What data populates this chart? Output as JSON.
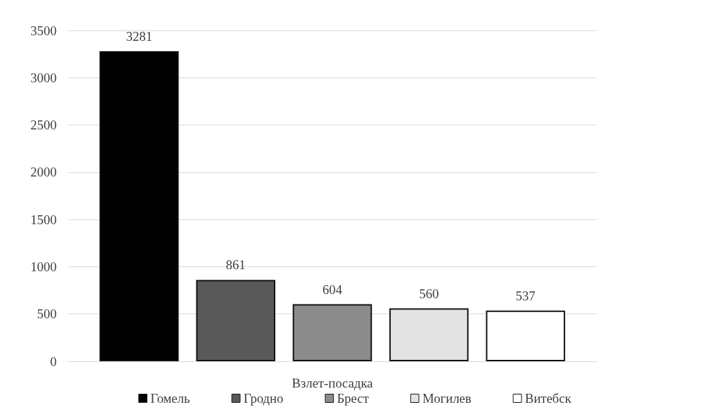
{
  "chart_data": {
    "type": "bar",
    "xlabel": "Взлет-посадка",
    "categories": [
      null
    ],
    "series": [
      {
        "name": "Гомель",
        "color": "#000000",
        "values": [
          3281
        ]
      },
      {
        "name": "Гродно",
        "color": "#595959",
        "values": [
          861
        ]
      },
      {
        "name": "Брест",
        "color": "#8c8c8c",
        "values": [
          604
        ]
      },
      {
        "name": "Могилев",
        "color": "#e3e3e3",
        "values": [
          560
        ]
      },
      {
        "name": "Витебск",
        "color": "#ffffff",
        "values": [
          537
        ]
      }
    ],
    "ylim": [
      0,
      3500
    ],
    "yticks": [
      0,
      500,
      1000,
      1500,
      2000,
      2500,
      3000,
      3500
    ],
    "grid": "y",
    "legend": "bottom",
    "data_labels": true
  }
}
